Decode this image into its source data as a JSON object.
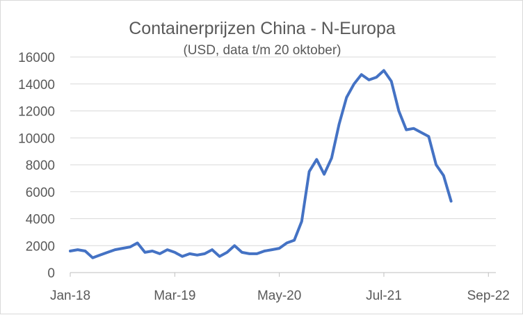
{
  "chart_data": {
    "type": "line",
    "title": "Containerprijzen China - N-Europa",
    "subtitle": "(USD, data t/m 20 oktober)",
    "xlabel": "",
    "ylabel": "",
    "ylim": [
      0,
      16000
    ],
    "y_ticks": [
      0,
      2000,
      4000,
      6000,
      8000,
      10000,
      12000,
      14000,
      16000
    ],
    "x_tick_labels": [
      "Jan-18",
      "Mar-19",
      "May-20",
      "Jul-21",
      "Sep-22"
    ],
    "x_range": [
      "Jan-18",
      "Oct-22"
    ],
    "grid": "horizontal",
    "legend": "none",
    "line_color": "#4472C4",
    "series": [
      {
        "points": [
          [
            "Jan-18",
            1600
          ],
          [
            "Feb-18",
            1700
          ],
          [
            "Mar-18",
            1600
          ],
          [
            "Apr-18",
            1100
          ],
          [
            "May-18",
            1300
          ],
          [
            "Jun-18",
            1500
          ],
          [
            "Jul-18",
            1700
          ],
          [
            "Aug-18",
            1800
          ],
          [
            "Sep-18",
            1900
          ],
          [
            "Oct-18",
            2200
          ],
          [
            "Nov-18",
            1500
          ],
          [
            "Dec-18",
            1600
          ],
          [
            "Jan-19",
            1400
          ],
          [
            "Feb-19",
            1700
          ],
          [
            "Mar-19",
            1500
          ],
          [
            "Apr-19",
            1200
          ],
          [
            "May-19",
            1400
          ],
          [
            "Jun-19",
            1300
          ],
          [
            "Jul-19",
            1400
          ],
          [
            "Aug-19",
            1700
          ],
          [
            "Sep-19",
            1200
          ],
          [
            "Oct-19",
            1500
          ],
          [
            "Nov-19",
            2000
          ],
          [
            "Dec-19",
            1500
          ],
          [
            "Jan-20",
            1400
          ],
          [
            "Feb-20",
            1400
          ],
          [
            "Mar-20",
            1600
          ],
          [
            "Apr-20",
            1700
          ],
          [
            "May-20",
            1800
          ],
          [
            "Jun-20",
            2200
          ],
          [
            "Jul-20",
            2400
          ],
          [
            "Aug-20",
            3800
          ],
          [
            "Sep-20",
            7500
          ],
          [
            "Oct-20",
            8400
          ],
          [
            "Nov-20",
            7300
          ],
          [
            "Dec-20",
            8500
          ],
          [
            "Jan-21",
            11000
          ],
          [
            "Feb-21",
            13000
          ],
          [
            "Mar-21",
            14000
          ],
          [
            "Apr-21",
            14700
          ],
          [
            "May-21",
            14300
          ],
          [
            "Jun-21",
            14500
          ],
          [
            "Jul-21",
            15000
          ],
          [
            "Aug-21",
            14200
          ],
          [
            "Sep-21",
            12000
          ],
          [
            "Oct-21",
            10600
          ],
          [
            "Nov-21",
            10700
          ],
          [
            "Dec-21",
            10400
          ],
          [
            "Jan-22",
            10100
          ],
          [
            "Feb-22",
            8000
          ],
          [
            "Mar-22",
            7200
          ],
          [
            "Apr-22",
            5300
          ]
        ]
      }
    ]
  }
}
